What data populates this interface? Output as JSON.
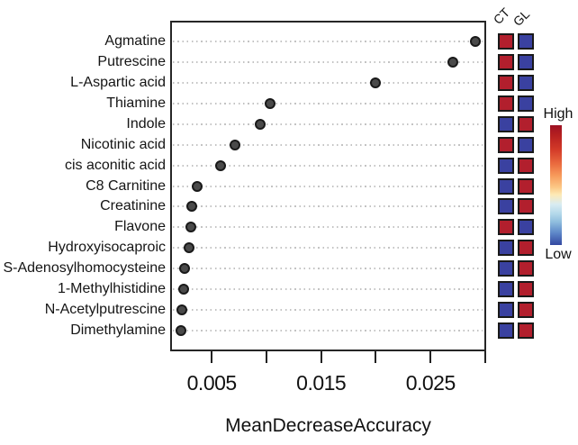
{
  "chart_data": {
    "type": "scatter",
    "title": "",
    "xlabel": "MeanDecreaseAccuracy",
    "xlim": [
      0.0012,
      0.03
    ],
    "x_ticks": [
      0.005,
      0.01,
      0.015,
      0.02,
      0.025,
      0.03
    ],
    "x_tick_labels": [
      "0.005",
      "",
      "0.015",
      "",
      "0.025",
      ""
    ],
    "grid": "horizontal-dotted",
    "dot_color": "#4a4a4a",
    "rows": [
      {
        "label": "Agmatine",
        "value": 0.0291,
        "CT": "high",
        "GL": "low"
      },
      {
        "label": "Putrescine",
        "value": 0.027,
        "CT": "high",
        "GL": "low"
      },
      {
        "label": "L-Aspartic acid",
        "value": 0.02,
        "CT": "high",
        "GL": "low"
      },
      {
        "label": "Thiamine",
        "value": 0.0103,
        "CT": "high",
        "GL": "low"
      },
      {
        "label": "Indole",
        "value": 0.0094,
        "CT": "low",
        "GL": "high"
      },
      {
        "label": "Nicotinic acid",
        "value": 0.0071,
        "CT": "high",
        "GL": "low"
      },
      {
        "label": "cis aconitic acid",
        "value": 0.0058,
        "CT": "low",
        "GL": "high"
      },
      {
        "label": "C8 Carnitine",
        "value": 0.0037,
        "CT": "low",
        "GL": "high"
      },
      {
        "label": "Creatinine",
        "value": 0.0032,
        "CT": "low",
        "GL": "high"
      },
      {
        "label": "Flavone",
        "value": 0.0031,
        "CT": "high",
        "GL": "low"
      },
      {
        "label": "Hydroxyisocaproic",
        "value": 0.0029,
        "CT": "low",
        "GL": "high"
      },
      {
        "label": "S-Adenosylhomocysteine",
        "value": 0.0025,
        "CT": "low",
        "GL": "high"
      },
      {
        "label": "1-Methylhistidine",
        "value": 0.0024,
        "CT": "low",
        "GL": "high"
      },
      {
        "label": "N-Acetylputrescine",
        "value": 0.0023,
        "CT": "low",
        "GL": "high"
      },
      {
        "label": "Dimethylamine",
        "value": 0.0022,
        "CT": "low",
        "GL": "high"
      }
    ],
    "heatmap": {
      "columns": [
        "CT",
        "GL"
      ]
    },
    "cell_colors": {
      "high": "#b21f2d",
      "low": "#3a41a0"
    },
    "colorbar": {
      "high_label": "High",
      "low_label": "Low",
      "gradient": [
        "#9d1224 0%",
        "#b51f20 8%",
        "#d23928 20%",
        "#ea6a3e 32%",
        "#f79a5b 42%",
        "#fcc987 52%",
        "#fdeab6 58%",
        "#d9ecf2 66%",
        "#b3d8ea 74%",
        "#8ebcdd 81%",
        "#5d87c8 90%",
        "#3348a0 100%"
      ]
    }
  }
}
